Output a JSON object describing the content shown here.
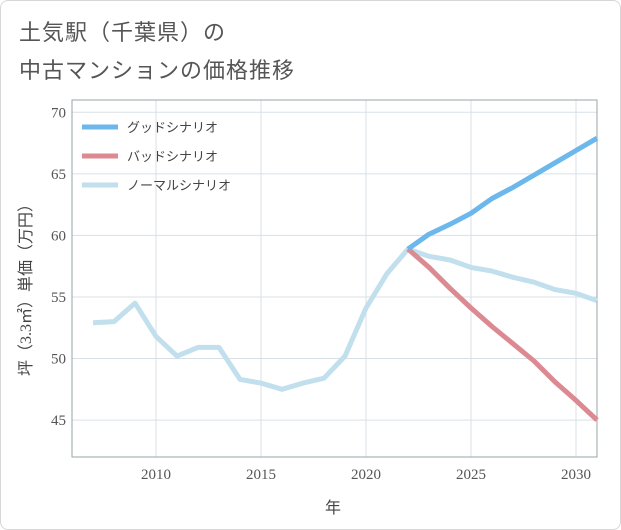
{
  "title": {
    "line1": "土気駅（千葉県）の",
    "line2": "中古マンションの価格推移"
  },
  "colors": {
    "good": "#6cb7ec",
    "bad": "#dc8a92",
    "normal": "#c1dfed",
    "grid": "#d8e0e6",
    "frame": "#9aa3aa",
    "text": "#555555"
  },
  "chart_data": {
    "type": "line",
    "xlabel": "年",
    "ylabel": "坪（3.3㎡）単価（万円）",
    "xlim": [
      2006,
      2031
    ],
    "ylim": [
      42,
      71
    ],
    "xticks": [
      2010,
      2015,
      2020,
      2025,
      2030
    ],
    "yticks": [
      45,
      50,
      55,
      60,
      65,
      70
    ],
    "grid": true,
    "legend_position": "top-left",
    "series": [
      {
        "name": "グッドシナリオ",
        "key": "good",
        "x": [
          2022,
          2023,
          2024,
          2025,
          2026,
          2027,
          2028,
          2029,
          2030,
          2031
        ],
        "y": [
          58.9,
          60.1,
          60.9,
          61.8,
          63.0,
          63.9,
          64.9,
          65.9,
          66.9,
          67.9
        ]
      },
      {
        "name": "バッドシナリオ",
        "key": "bad",
        "x": [
          2022,
          2023,
          2024,
          2025,
          2026,
          2027,
          2028,
          2029,
          2030,
          2031
        ],
        "y": [
          58.9,
          57.4,
          55.7,
          54.1,
          52.6,
          51.2,
          49.8,
          48.1,
          46.6,
          45.0
        ]
      },
      {
        "name": "ノーマルシナリオ",
        "key": "normal",
        "x": [
          2007,
          2008,
          2009,
          2010,
          2011,
          2012,
          2013,
          2014,
          2015,
          2016,
          2017,
          2018,
          2019,
          2020,
          2021,
          2022,
          2023,
          2024,
          2025,
          2026,
          2027,
          2028,
          2029,
          2030,
          2031
        ],
        "y": [
          52.9,
          53.0,
          54.5,
          51.8,
          50.2,
          50.9,
          50.9,
          48.3,
          48.0,
          47.5,
          48.0,
          48.4,
          50.2,
          54.1,
          56.9,
          58.9,
          58.3,
          58.0,
          57.4,
          57.1,
          56.6,
          56.2,
          55.6,
          55.3,
          54.7
        ]
      }
    ]
  }
}
